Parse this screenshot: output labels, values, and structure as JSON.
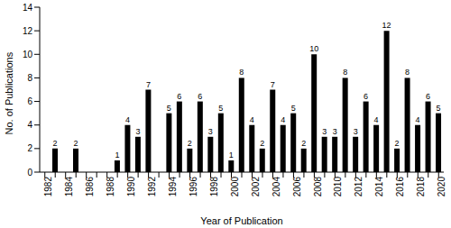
{
  "chart_data": {
    "type": "bar",
    "x_label": "Year of Publication",
    "y_label": "No. of Publications",
    "categories": [
      "1982",
      null,
      "1984",
      null,
      "1986",
      null,
      "1988",
      null,
      "1990",
      null,
      "1992",
      null,
      "1994",
      null,
      "1996",
      null,
      "1998",
      null,
      "2000",
      null,
      "2002",
      null,
      "2004",
      null,
      "2006",
      null,
      "2008",
      null,
      "2010",
      null,
      "2012",
      null,
      "2014",
      null,
      "2016",
      null,
      "2018",
      null,
      "2020"
    ],
    "values": [
      0,
      2,
      0,
      2,
      0,
      0,
      0,
      1,
      4,
      3,
      7,
      0,
      5,
      6,
      2,
      6,
      3,
      5,
      1,
      8,
      4,
      2,
      7,
      4,
      5,
      2,
      10,
      3,
      3,
      8,
      3,
      6,
      4,
      12,
      2,
      8,
      4,
      6,
      5
    ],
    "color": "#000000",
    "ylim": [
      0,
      14
    ],
    "yticks": [
      0,
      2,
      4,
      6,
      8,
      10,
      12,
      14
    ],
    "grid": false,
    "data_labels": true
  }
}
